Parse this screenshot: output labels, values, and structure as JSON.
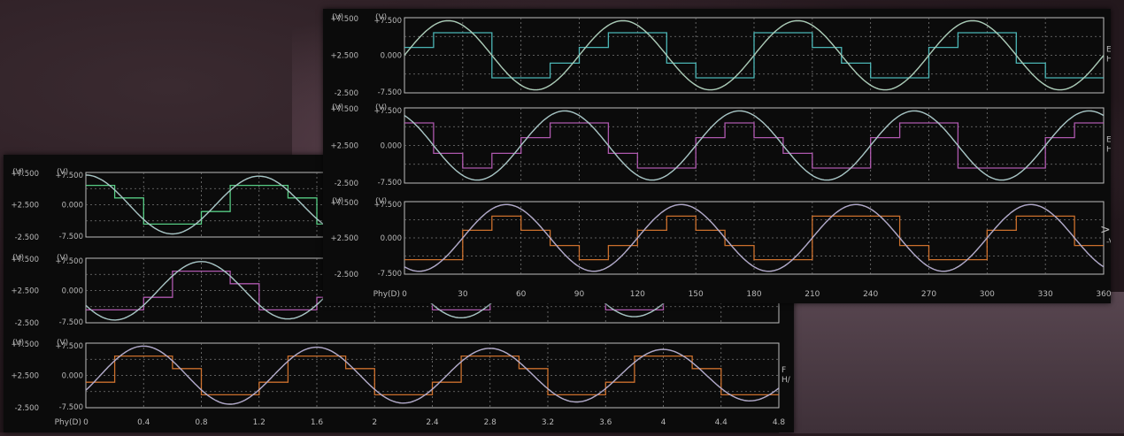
{
  "colors": {
    "grid": "#7a7a7a",
    "frame": "#bdbdbd",
    "label": "#b9b9b9",
    "wave_gray": "#c8c8c8",
    "step_green": "#5ee090",
    "step_cyan": "#52c8c8",
    "step_magenta": "#c060c0",
    "step_orange": "#e07a30",
    "step_purple": "#8060e0"
  },
  "back_window": {
    "x_label": "Phy(D)",
    "x_ticks": [
      "0",
      "0.4",
      "0.8",
      "1.2",
      "1.6",
      "2",
      "2.4",
      "2.8",
      "3.2",
      "3.6",
      "4",
      "4.4",
      "4.8"
    ],
    "panels": [
      {
        "unit": "(V)",
        "unit_inner": "(V)",
        "y_ticks_outer": [
          "+7.500",
          "+2.500",
          "-2.500"
        ],
        "y_ticks_inner": [
          "+7.500",
          "0.000",
          "-7.500"
        ],
        "legend": [
          "",
          ""
        ]
      },
      {
        "unit": "(V)",
        "unit_inner": "(V)",
        "y_ticks_outer": [
          "+7.500",
          "+2.500",
          "-2.500"
        ],
        "y_ticks_inner": [
          "+7.500",
          "0.000",
          "-7.500"
        ],
        "legend": [
          "",
          ""
        ]
      },
      {
        "unit": "(V)",
        "unit_inner": "(V)",
        "y_ticks_outer": [
          "+7.500",
          "+2.500",
          "-2.500"
        ],
        "y_ticks_inner": [
          "+7.500",
          "0.000",
          "-7.500"
        ],
        "legend": [
          "F",
          "H/"
        ]
      }
    ]
  },
  "front_window": {
    "x_label": "Phy(D)",
    "x_ticks": [
      "0",
      "30",
      "60",
      "90",
      "120",
      "150",
      "180",
      "210",
      "240",
      "270",
      "300",
      "330",
      "360"
    ],
    "panels": [
      {
        "unit": "(V)",
        "unit_inner": "(V)",
        "y_ticks_outer": [
          "+7.500",
          "+2.500",
          "-2.500"
        ],
        "y_ticks_inner": [
          "+7.500",
          "0.000",
          "-7.500"
        ],
        "legend": [
          "EUV",
          "H(U)"
        ]
      },
      {
        "unit": "(V)",
        "unit_inner": "(V)",
        "y_ticks_outer": [
          "+7.500",
          "+2.500",
          "-2.500"
        ],
        "y_ticks_inner": [
          "+7.500",
          "0.000",
          "-7.500"
        ],
        "legend": [
          "EV(",
          "H(V"
        ]
      },
      {
        "unit": "(V)",
        "unit_inner": "(V)",
        "y_ticks_outer": [
          "+7.500",
          "+2.500",
          "-2.500"
        ],
        "y_ticks_inner": [
          "+7.500",
          "0.000",
          "-7.500"
        ],
        "legend": [
          "",
          "-V"
        ]
      }
    ],
    "scroll_arrow": ">"
  },
  "chart_data": [
    {
      "type": "line",
      "xlabel": "Phy(D)",
      "x_range": [
        0,
        4.8
      ],
      "ylim": [
        -7.5,
        7.5
      ],
      "grid": true,
      "series_shapes": [
        {
          "waveform": "sine",
          "amplitude": 7.5,
          "cycles": 4,
          "start_phase_deg": 90,
          "amp_decay": 0.15
        },
        {
          "waveform": "stepped",
          "level": 4.5,
          "cycles": 4,
          "start_phase_deg": 90
        }
      ]
    },
    {
      "type": "line",
      "xlabel": "Phy(D)",
      "x_range": [
        0,
        360
      ],
      "ylim": [
        -7.5,
        7.5
      ],
      "grid": true,
      "series_shapes": [
        {
          "waveform": "sine",
          "amplitude": 7.5,
          "cycles": 4,
          "start_phase_deg": 0
        },
        {
          "waveform": "stepped",
          "level": 4.5,
          "cycles": 4,
          "start_phase_deg": 0
        }
      ]
    }
  ]
}
